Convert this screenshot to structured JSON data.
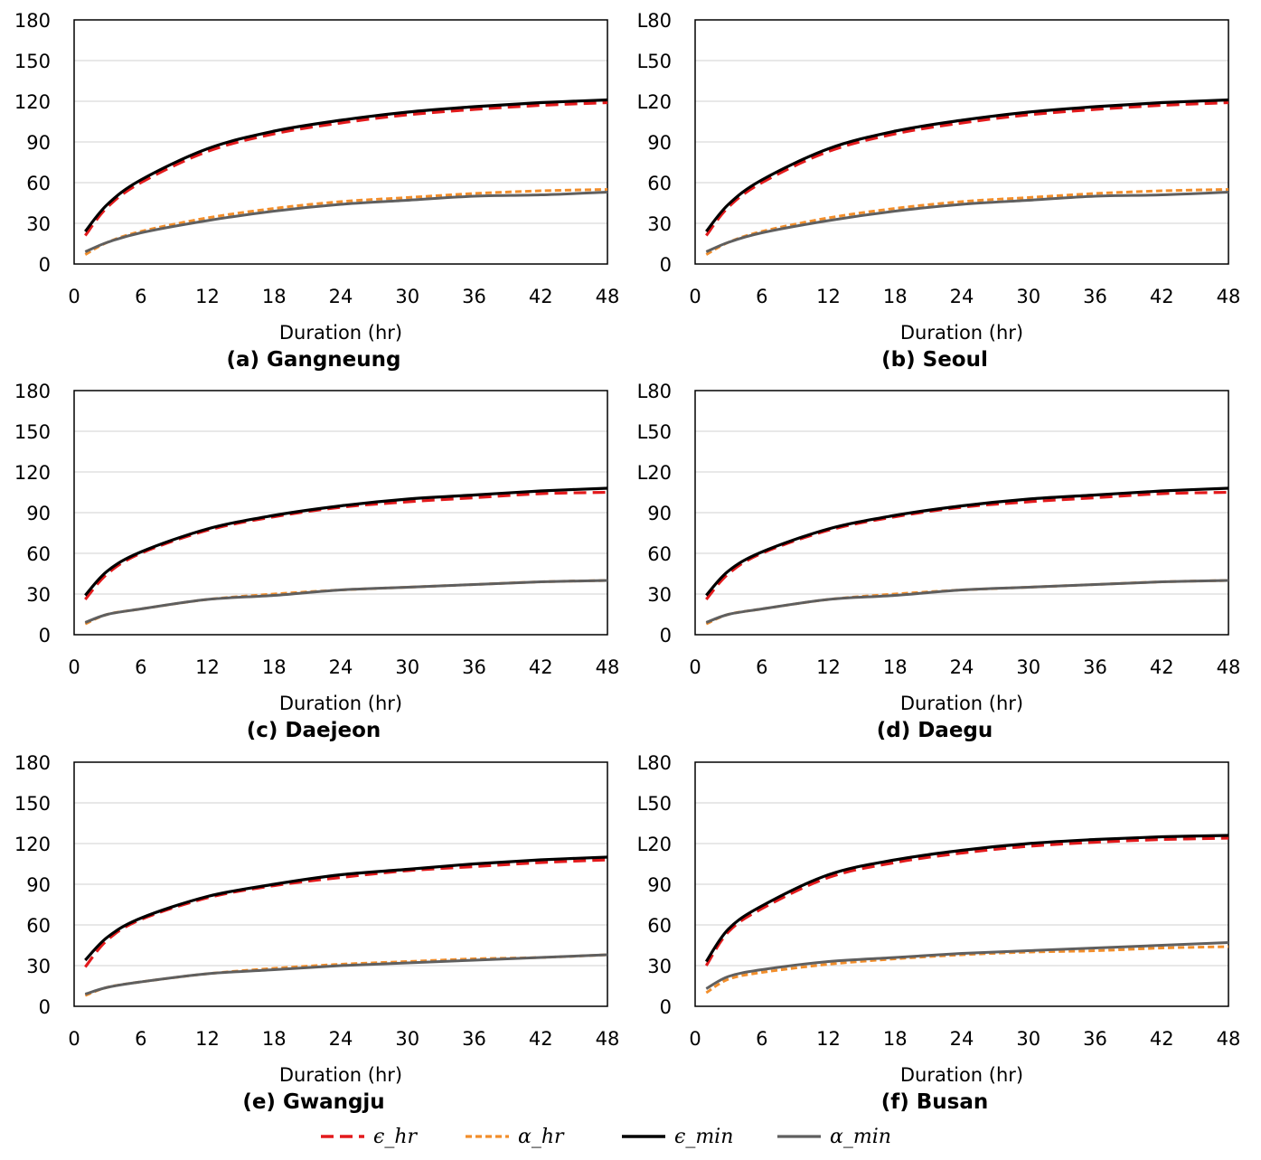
{
  "chart_data": [
    {
      "type": "line",
      "title": "(a) Gangneung",
      "xlabel": "Duration (hr)",
      "ylabel": "",
      "xlim": [
        0,
        48
      ],
      "ylim": [
        0,
        180
      ],
      "xticks": [
        "0",
        "6",
        "12",
        "18",
        "24",
        "30",
        "36",
        "42",
        "48"
      ],
      "yticks": [
        "0",
        "30",
        "60",
        "90",
        "120",
        "150",
        "180"
      ],
      "x": [
        1,
        3,
        6,
        12,
        18,
        24,
        30,
        36,
        42,
        48
      ],
      "series": [
        {
          "name": "ϵ_hr",
          "values": [
            21,
            42,
            60,
            83,
            96,
            104,
            110,
            114,
            117,
            119
          ]
        },
        {
          "name": "α_hr",
          "values": [
            7,
            16,
            24,
            34,
            41,
            46,
            49,
            52,
            54,
            55
          ]
        },
        {
          "name": "ϵ_min",
          "values": [
            24,
            44,
            62,
            85,
            98,
            106,
            112,
            116,
            119,
            121
          ]
        },
        {
          "name": "α_min",
          "values": [
            9,
            16,
            23,
            32,
            39,
            44,
            47,
            50,
            51,
            53
          ]
        }
      ]
    },
    {
      "type": "line",
      "title": "(b) Seoul",
      "xlabel": "Duration (hr)",
      "ylabel": "",
      "xlim": [
        0,
        48
      ],
      "ylim": [
        0,
        180
      ],
      "xticks": [
        "0",
        "6",
        "12",
        "18",
        "24",
        "30",
        "36",
        "42",
        "48"
      ],
      "yticks": [
        "0",
        "30",
        "60",
        "90",
        "L20",
        "L50",
        "L80"
      ],
      "x": [
        1,
        3,
        6,
        12,
        18,
        24,
        30,
        36,
        42,
        48
      ],
      "series": [
        {
          "name": "ϵ_hr",
          "values": [
            21,
            42,
            60,
            83,
            96,
            104,
            110,
            114,
            117,
            119
          ]
        },
        {
          "name": "α_hr",
          "values": [
            7,
            16,
            24,
            34,
            41,
            46,
            49,
            52,
            54,
            55
          ]
        },
        {
          "name": "ϵ_min",
          "values": [
            24,
            44,
            62,
            85,
            98,
            106,
            112,
            116,
            119,
            121
          ]
        },
        {
          "name": "α_min",
          "values": [
            9,
            16,
            23,
            32,
            39,
            44,
            47,
            50,
            51,
            53
          ]
        }
      ]
    },
    {
      "type": "line",
      "title": "(c) Daejeon",
      "xlabel": "Duration (hr)",
      "ylabel": "",
      "xlim": [
        0,
        48
      ],
      "ylim": [
        0,
        180
      ],
      "xticks": [
        "0",
        "6",
        "12",
        "18",
        "24",
        "30",
        "36",
        "42",
        "48"
      ],
      "yticks": [
        "0",
        "30",
        "60",
        "90",
        "120",
        "150",
        "180"
      ],
      "x": [
        1,
        3,
        6,
        12,
        18,
        24,
        30,
        36,
        42,
        48
      ],
      "series": [
        {
          "name": "ϵ_hr",
          "values": [
            26,
            45,
            60,
            77,
            87,
            94,
            98,
            101,
            104,
            105
          ]
        },
        {
          "name": "α_hr",
          "values": [
            8,
            15,
            19,
            26,
            30,
            33,
            35,
            37,
            39,
            40
          ]
        },
        {
          "name": "ϵ_min",
          "values": [
            29,
            47,
            61,
            78,
            88,
            95,
            100,
            103,
            106,
            108
          ]
        },
        {
          "name": "α_min",
          "values": [
            9,
            15,
            19,
            26,
            29,
            33,
            35,
            37,
            39,
            40
          ]
        }
      ]
    },
    {
      "type": "line",
      "title": "(d) Daegu",
      "xlabel": "Duration (hr)",
      "ylabel": "",
      "xlim": [
        0,
        48
      ],
      "ylim": [
        0,
        180
      ],
      "xticks": [
        "0",
        "6",
        "12",
        "18",
        "24",
        "30",
        "36",
        "42",
        "48"
      ],
      "yticks": [
        "0",
        "30",
        "60",
        "90",
        "L20",
        "L50",
        "L80"
      ],
      "x": [
        1,
        3,
        6,
        12,
        18,
        24,
        30,
        36,
        42,
        48
      ],
      "series": [
        {
          "name": "ϵ_hr",
          "values": [
            26,
            45,
            60,
            77,
            87,
            94,
            98,
            101,
            104,
            105
          ]
        },
        {
          "name": "α_hr",
          "values": [
            8,
            15,
            19,
            26,
            30,
            33,
            35,
            37,
            39,
            40
          ]
        },
        {
          "name": "ϵ_min",
          "values": [
            29,
            47,
            61,
            78,
            88,
            95,
            100,
            103,
            106,
            108
          ]
        },
        {
          "name": "α_min",
          "values": [
            9,
            15,
            19,
            26,
            29,
            33,
            35,
            37,
            39,
            40
          ]
        }
      ]
    },
    {
      "type": "line",
      "title": "(e) Gwangju",
      "xlabel": "Duration (hr)",
      "ylabel": "",
      "xlim": [
        0,
        48
      ],
      "ylim": [
        0,
        180
      ],
      "xticks": [
        "0",
        "6",
        "12",
        "18",
        "24",
        "30",
        "36",
        "42",
        "48"
      ],
      "yticks": [
        "0",
        "30",
        "60",
        "90",
        "120",
        "150",
        "180"
      ],
      "x": [
        1,
        3,
        6,
        12,
        18,
        24,
        30,
        36,
        42,
        48
      ],
      "series": [
        {
          "name": "ϵ_hr",
          "values": [
            29,
            49,
            64,
            80,
            89,
            95,
            100,
            103,
            106,
            108
          ]
        },
        {
          "name": "α_hr",
          "values": [
            8,
            14,
            18,
            24,
            28,
            31,
            33,
            35,
            36,
            38
          ]
        },
        {
          "name": "ϵ_min",
          "values": [
            34,
            51,
            65,
            81,
            90,
            97,
            101,
            105,
            108,
            110
          ]
        },
        {
          "name": "α_min",
          "values": [
            9,
            14,
            18,
            24,
            27,
            30,
            32,
            34,
            36,
            38
          ]
        }
      ]
    },
    {
      "type": "line",
      "title": "(f) Busan",
      "xlabel": "Duration (hr)",
      "ylabel": "",
      "xlim": [
        0,
        48
      ],
      "ylim": [
        0,
        180
      ],
      "xticks": [
        "0",
        "6",
        "12",
        "18",
        "24",
        "30",
        "36",
        "42",
        "48"
      ],
      "yticks": [
        "0",
        "30",
        "60",
        "90",
        "L20",
        "L50",
        "L80"
      ],
      "x": [
        1,
        3,
        6,
        12,
        18,
        24,
        30,
        36,
        42,
        48
      ],
      "series": [
        {
          "name": "ϵ_hr",
          "values": [
            30,
            55,
            72,
            95,
            106,
            113,
            118,
            121,
            123,
            124
          ]
        },
        {
          "name": "α_hr",
          "values": [
            10,
            20,
            25,
            31,
            35,
            38,
            40,
            41,
            43,
            44
          ]
        },
        {
          "name": "ϵ_min",
          "values": [
            33,
            57,
            74,
            97,
            108,
            115,
            120,
            123,
            125,
            126
          ]
        },
        {
          "name": "α_min",
          "values": [
            13,
            22,
            27,
            33,
            36,
            39,
            41,
            43,
            45,
            47
          ]
        }
      ]
    }
  ],
  "legend": [
    {
      "label": "ϵ_hr",
      "color": "#e31a1c",
      "style": "dashed"
    },
    {
      "label": "α_hr",
      "color": "#f28e2b",
      "style": "dashed"
    },
    {
      "label": "ϵ_min",
      "color": "#000000",
      "style": "solid"
    },
    {
      "label": "α_min",
      "color": "#5f5f5f",
      "style": "solid"
    }
  ],
  "colors": {
    "eps_hr": "#e31a1c",
    "alpha_hr": "#f28e2b",
    "eps_min": "#000000",
    "alpha_min": "#5f5f5f",
    "grid": "#d9d9d9",
    "frame": "#000000"
  }
}
